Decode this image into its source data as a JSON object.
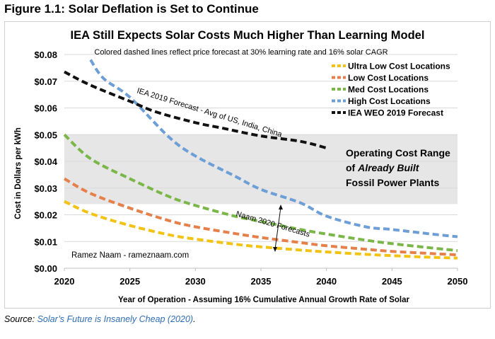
{
  "figure": {
    "caption": "Figure 1.1: Solar Deflation is Set to Continue",
    "source_label": "Source:",
    "source_link": "Solar’s Future is Insanely Cheap (2020)",
    "source_end": "."
  },
  "colors": {
    "ultra": "#f2c314",
    "low": "#e5804a",
    "med": "#7ab648",
    "high": "#6d9fd6",
    "iea": "#111111",
    "band": "#e6e6e6"
  },
  "chart_data": {
    "type": "line",
    "title": "IEA Still Expects Solar Costs Much Higher Than Learning Model",
    "subtitle": "Colored dashed lines reflect price forecast at 30% learning rate and 16% solar CAGR",
    "xlabel": "Year of Operation - Assuming 16% Cumulative Annual Growth Rate of Solar",
    "ylabel": "Cost in Dollars per kWh",
    "xlim": [
      2020,
      2050
    ],
    "ylim": [
      0,
      0.08
    ],
    "x_ticks": [
      "2020",
      "2025",
      "2030",
      "2035",
      "2040",
      "2045",
      "2050"
    ],
    "y_ticks": [
      "$0.00",
      "$0.01",
      "$0.02",
      "$0.03",
      "$0.04",
      "$0.05",
      "$0.06",
      "$0.07",
      "$0.08"
    ],
    "legend_position": "top-right",
    "series": [
      {
        "name": "Ultra Low Cost Locations",
        "color_key": "ultra",
        "x": [
          2020,
          2022,
          2025,
          2028,
          2030,
          2033,
          2035,
          2038,
          2040,
          2043,
          2045,
          2048,
          2050
        ],
        "y": [
          0.025,
          0.0205,
          0.016,
          0.0125,
          0.0109,
          0.009,
          0.008,
          0.0068,
          0.0061,
          0.0052,
          0.0047,
          0.0041,
          0.0038
        ]
      },
      {
        "name": "Low Cost Locations",
        "color_key": "low",
        "x": [
          2020,
          2022,
          2025,
          2028,
          2030,
          2033,
          2035,
          2038,
          2040,
          2043,
          2045,
          2048,
          2050
        ],
        "y": [
          0.0335,
          0.028,
          0.0225,
          0.0178,
          0.0155,
          0.013,
          0.0115,
          0.0096,
          0.0084,
          0.0071,
          0.0063,
          0.0055,
          0.005
        ]
      },
      {
        "name": "Med Cost Locations",
        "color_key": "med",
        "x": [
          2020,
          2022,
          2025,
          2028,
          2030,
          2033,
          2035,
          2038,
          2040,
          2043,
          2045,
          2048,
          2050
        ],
        "y": [
          0.05,
          0.041,
          0.0335,
          0.0268,
          0.0235,
          0.0195,
          0.0175,
          0.0145,
          0.0128,
          0.0105,
          0.0092,
          0.0076,
          0.0066
        ]
      },
      {
        "name": "High Cost Locations",
        "color_key": "high",
        "x": [
          2022,
          2023,
          2025,
          2028,
          2030,
          2033,
          2035,
          2038,
          2040,
          2043,
          2045,
          2048,
          2050
        ],
        "y": [
          0.078,
          0.071,
          0.064,
          0.049,
          0.042,
          0.0345,
          0.0295,
          0.0245,
          0.0195,
          0.0155,
          0.0145,
          0.0128,
          0.0118
        ]
      },
      {
        "name": "IEA WEO 2019 Forecast",
        "color_key": "iea",
        "x": [
          2020,
          2022,
          2025,
          2027,
          2030,
          2032,
          2035,
          2038,
          2040
        ],
        "y": [
          0.0735,
          0.0685,
          0.0625,
          0.0585,
          0.0545,
          0.0525,
          0.0495,
          0.0475,
          0.045
        ]
      }
    ],
    "band": {
      "y_min": 0.024,
      "y_max": 0.05
    },
    "annotations": {
      "iea_label": "IEA 2019 Forecast - Avg of US, India, China",
      "naam_label": "Naam 2020 Forecasts",
      "band_label_1": "Operating Cost Range",
      "band_label_2_pre": "of ",
      "band_label_2_em": "Already Built",
      "band_label_3": "Fossil Power Plants",
      "credit": "Ramez Naam - rameznaam.com"
    }
  }
}
